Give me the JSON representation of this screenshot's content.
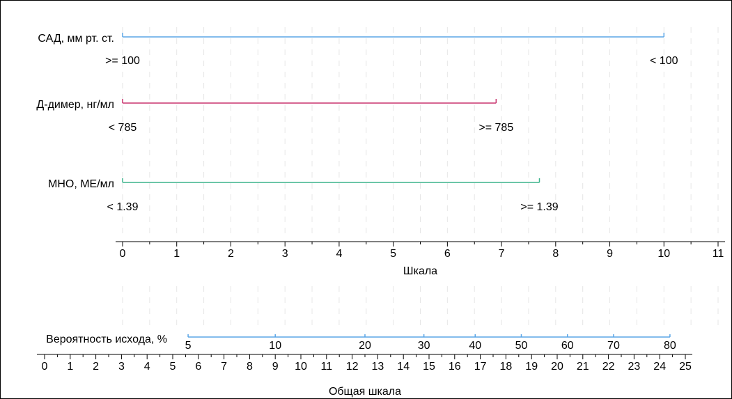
{
  "chart_data": {
    "type": "nomogram",
    "title": "",
    "points_scale": {
      "label": "Шкала",
      "min": 0,
      "max": 11,
      "ticks": [
        0,
        1,
        2,
        3,
        4,
        5,
        6,
        7,
        8,
        9,
        10,
        11
      ],
      "minor_step": 0.5
    },
    "predictors": [
      {
        "name": "САД, мм рт. ст.",
        "color": "#5aa5e6",
        "points_range": [
          0,
          10
        ],
        "levels": [
          {
            "label": ">= 100",
            "points": 0
          },
          {
            "label": "< 100",
            "points": 10
          }
        ]
      },
      {
        "name": "Д-димер, нг/мл",
        "color": "#c8336e",
        "points_range": [
          0,
          6.9
        ],
        "levels": [
          {
            "label": "< 785",
            "points": 0
          },
          {
            "label": ">= 785",
            "points": 6.9
          }
        ]
      },
      {
        "name": "МНО, МЕ/мл",
        "color": "#3cb48c",
        "points_range": [
          0,
          7.7
        ],
        "levels": [
          {
            "label": "< 1.39",
            "points": 0
          },
          {
            "label": ">= 1.39",
            "points": 7.7
          }
        ]
      }
    ],
    "total_points_scale": {
      "label": "Общая шкала",
      "min": 0,
      "max": 25,
      "ticks": [
        0,
        1,
        2,
        3,
        4,
        5,
        6,
        7,
        8,
        9,
        10,
        11,
        12,
        13,
        14,
        15,
        16,
        17,
        18,
        19,
        20,
        21,
        22,
        23,
        24,
        25
      ],
      "minor_step": 0.5
    },
    "outcome": {
      "name": "Вероятность исхода, %",
      "color": "#5aa5e6",
      "line_range_total_points": [
        5.6,
        24.4
      ],
      "ticks": [
        {
          "label": "5",
          "total_points": 5.6
        },
        {
          "label": "10",
          "total_points": 9
        },
        {
          "label": "20",
          "total_points": 12.5
        },
        {
          "label": "30",
          "total_points": 14.8
        },
        {
          "label": "40",
          "total_points": 16.8
        },
        {
          "label": "50",
          "total_points": 18.6
        },
        {
          "label": "60",
          "total_points": 20.4
        },
        {
          "label": "70",
          "total_points": 22.2
        },
        {
          "label": "80",
          "total_points": 24.4
        }
      ]
    },
    "grid": true,
    "legend": "none"
  }
}
